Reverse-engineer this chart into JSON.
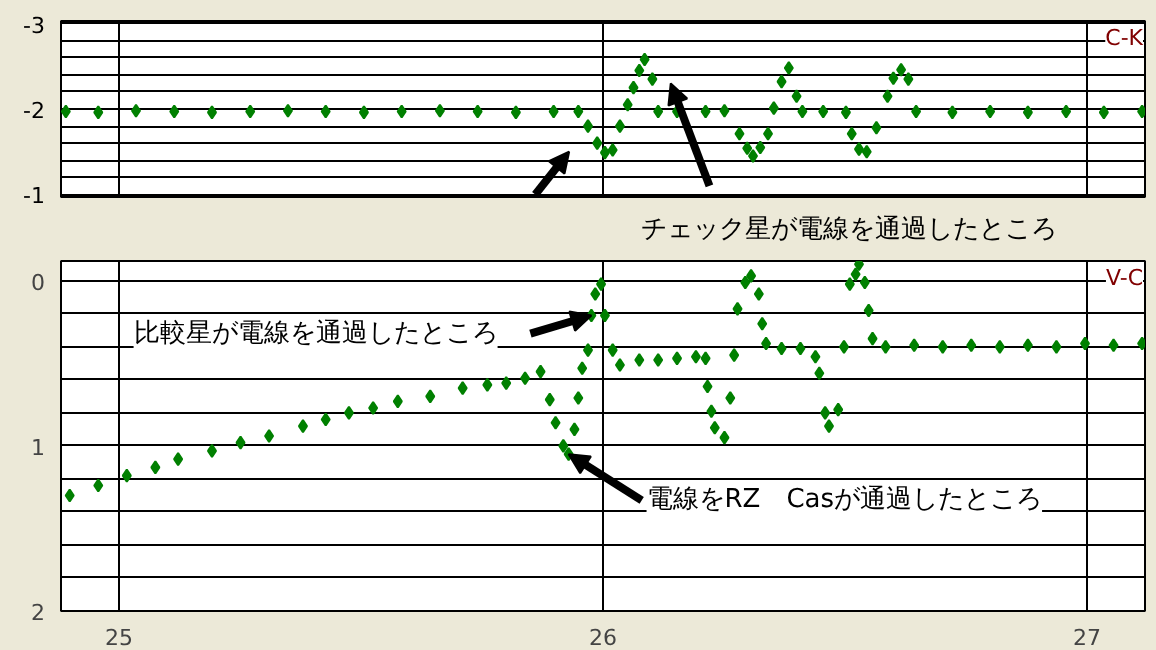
{
  "chart_data": [
    {
      "type": "scatter",
      "title": "C-K",
      "marker": "diamond",
      "grid": true,
      "tick_labels": "y",
      "xlim": [
        24.88,
        27.12
      ],
      "xticks": [
        25,
        26,
        27
      ],
      "ylim": [
        -0.97,
        -3.03
      ],
      "yticks": [
        -3,
        {
          "value": -2.8,
          "label": null
        },
        {
          "value": -2.6,
          "label": null
        },
        {
          "value": -2.4,
          "label": null
        },
        {
          "value": -2.2,
          "label": null
        },
        -2,
        {
          "value": -1.8,
          "label": null
        },
        {
          "value": -1.6,
          "label": null
        },
        {
          "value": -1.4,
          "label": null
        },
        {
          "value": -1.2,
          "label": null
        },
        -1
      ],
      "annotations": [
        "チェック星が電線を通過したところ"
      ],
      "series": [
        {
          "color": "#008000",
          "x": [
            24.89,
            24.957,
            25.035,
            25.114,
            25.192,
            25.271,
            25.349,
            25.427,
            25.506,
            25.584,
            25.663,
            25.741,
            25.82,
            25.898,
            25.949,
            25.969,
            25.988,
            26.004,
            26.02,
            26.035,
            26.051,
            26.063,
            26.075,
            26.086,
            26.102,
            26.114,
            26.153,
            26.212,
            26.251,
            26.282,
            26.298,
            26.31,
            26.325,
            26.341,
            26.353,
            26.369,
            26.384,
            26.4,
            26.412,
            26.455,
            26.502,
            26.514,
            26.529,
            26.545,
            26.565,
            26.588,
            26.6,
            26.616,
            26.631,
            26.647,
            26.722,
            26.8,
            26.878,
            26.957,
            27.035,
            27.114
          ],
          "values": [
            -1.97,
            -1.96,
            -1.98,
            -1.97,
            -1.96,
            -1.97,
            -1.98,
            -1.97,
            -1.96,
            -1.97,
            -1.98,
            -1.97,
            -1.96,
            -1.97,
            -1.97,
            -1.8,
            -1.6,
            -1.49,
            -1.52,
            -1.8,
            -2.05,
            -2.25,
            -2.45,
            -2.58,
            -2.35,
            -1.97,
            -1.97,
            -1.97,
            -1.98,
            -1.71,
            -1.54,
            -1.45,
            -1.55,
            -1.71,
            -2.01,
            -2.32,
            -2.48,
            -2.15,
            -1.97,
            -1.97,
            -1.96,
            -1.71,
            -1.53,
            -1.5,
            -1.78,
            -2.15,
            -2.36,
            -2.46,
            -2.35,
            -1.97,
            -1.96,
            -1.97,
            -1.96,
            -1.97,
            -1.96,
            -1.97
          ]
        }
      ]
    },
    {
      "type": "scatter",
      "title": "V-C",
      "marker": "diamond",
      "grid": true,
      "xlim": [
        24.88,
        27.12
      ],
      "xticks": [
        25,
        26,
        27
      ],
      "ylim": [
        2,
        -0.12
      ],
      "yticks": [
        0,
        {
          "value": 0.2,
          "label": null
        },
        {
          "value": 0.4,
          "label": null
        },
        {
          "value": 0.6,
          "label": null
        },
        {
          "value": 0.8,
          "label": null
        },
        1,
        {
          "value": 1.2,
          "label": null
        },
        {
          "value": 1.4,
          "label": null
        },
        {
          "value": 1.6,
          "label": null
        },
        {
          "value": 1.8,
          "label": null
        },
        2
      ],
      "annotations": [
        {
          "text": "比較星が電線を通過したところ",
          "x": 25.976,
          "y": 0.21
        },
        {
          "text": "電線をRZ　Casが通過したところ",
          "x": 25.929,
          "y": 1.05
        }
      ],
      "series": [
        {
          "color": "#008000",
          "x": [
            24.898,
            24.957,
            25.016,
            25.075,
            25.122,
            25.192,
            25.251,
            25.31,
            25.38,
            25.427,
            25.475,
            25.525,
            25.576,
            25.643,
            25.71,
            25.761,
            25.8,
            25.839,
            25.871,
            25.89,
            25.902,
            25.918,
            25.929,
            25.941,
            25.949,
            25.957,
            25.969,
            25.976,
            25.984,
            25.996,
            26.004,
            26.02,
            26.035,
            26.075,
            26.114,
            26.153,
            26.192,
            26.212,
            26.216,
            26.224,
            26.231,
            26.251,
            26.263,
            26.271,
            26.278,
            26.294,
            26.306,
            26.322,
            26.329,
            26.337,
            26.369,
            26.408,
            26.439,
            26.447,
            26.459,
            26.467,
            26.486,
            26.498,
            26.51,
            26.522,
            26.529,
            26.541,
            26.549,
            26.557,
            26.584,
            26.643,
            26.702,
            26.761,
            26.82,
            26.878,
            26.937,
            26.996,
            27.055,
            27.114
          ],
          "values": [
            1.3,
            1.24,
            1.18,
            1.13,
            1.08,
            1.03,
            0.98,
            0.94,
            0.88,
            0.84,
            0.8,
            0.77,
            0.73,
            0.7,
            0.65,
            0.63,
            0.62,
            0.59,
            0.55,
            0.72,
            0.86,
            1.0,
            1.05,
            0.9,
            0.71,
            0.53,
            0.42,
            0.21,
            0.08,
            0.02,
            0.21,
            0.42,
            0.51,
            0.48,
            0.48,
            0.47,
            0.46,
            0.47,
            0.64,
            0.79,
            0.89,
            0.95,
            0.71,
            0.45,
            0.17,
            0.01,
            -0.03,
            0.08,
            0.26,
            0.38,
            0.41,
            0.41,
            0.46,
            0.56,
            0.8,
            0.88,
            0.78,
            0.4,
            0.02,
            -0.04,
            -0.1,
            0.01,
            0.18,
            0.35,
            0.4,
            0.39,
            0.4,
            0.39,
            0.4,
            0.39,
            0.4,
            0.38,
            0.39,
            0.38
          ]
        }
      ]
    }
  ]
}
